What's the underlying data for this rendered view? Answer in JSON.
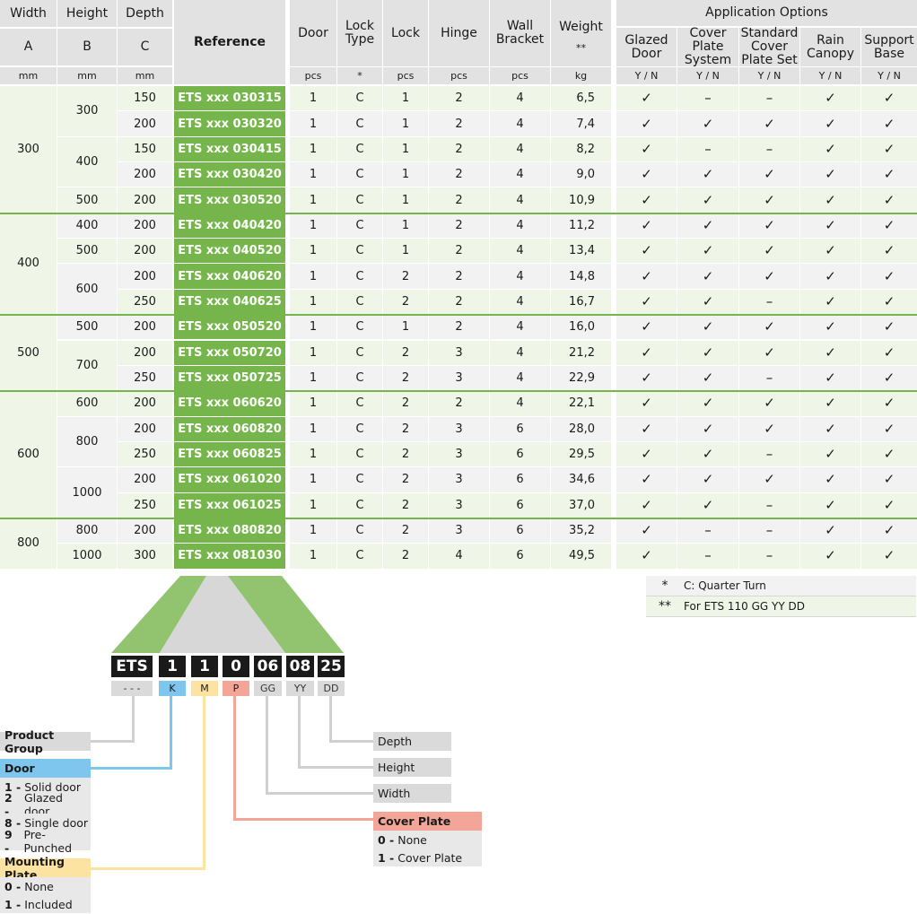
{
  "headers": {
    "width": {
      "name": "Width",
      "letter": "A",
      "unit": "mm"
    },
    "height": {
      "name": "Height",
      "letter": "B",
      "unit": "mm"
    },
    "depth": {
      "name": "Depth",
      "letter": "C",
      "unit": "mm"
    },
    "reference": "Reference",
    "door": {
      "name": "Door",
      "unit": "pcs"
    },
    "lock_type": {
      "name": "Lock\nType",
      "unit": "*"
    },
    "lock": {
      "name": "Lock",
      "unit": "pcs"
    },
    "hinge": {
      "name": "Hinge",
      "unit": "pcs"
    },
    "wall_bracket": {
      "name": "Wall\nBracket",
      "unit": "pcs"
    },
    "weight": {
      "name": "Weight",
      "note": "**",
      "unit": "kg"
    },
    "application_options": "Application Options",
    "options": [
      {
        "name": "Glazed\nDoor",
        "unit": "Y / N"
      },
      {
        "name": "Cover\nPlate\nSystem",
        "unit": "Y / N"
      },
      {
        "name": "Standard\nCover\nPlate Set",
        "unit": "Y / N"
      },
      {
        "name": "Rain\nCanopy",
        "unit": "Y / N"
      },
      {
        "name": "Support\nBase",
        "unit": "Y / N"
      }
    ]
  },
  "width_groups": [
    "300",
    "400",
    "500",
    "600",
    "800"
  ],
  "height_groups": [
    "300",
    "400",
    "500",
    "400",
    "500",
    "600",
    "500",
    "700",
    "600",
    "800",
    "1000",
    "800",
    "1000"
  ],
  "rows": [
    {
      "depth": "150",
      "ref": "ETS xxx 030315",
      "door": "1",
      "lock_type": "C",
      "lock": "1",
      "hinge": "2",
      "wall_bracket": "4",
      "weight": "6,5",
      "options": [
        "✓",
        "–",
        "–",
        "✓",
        "✓"
      ]
    },
    {
      "depth": "200",
      "ref": "ETS xxx 030320",
      "door": "1",
      "lock_type": "C",
      "lock": "1",
      "hinge": "2",
      "wall_bracket": "4",
      "weight": "7,4",
      "options": [
        "✓",
        "✓",
        "✓",
        "✓",
        "✓"
      ]
    },
    {
      "depth": "150",
      "ref": "ETS xxx 030415",
      "door": "1",
      "lock_type": "C",
      "lock": "1",
      "hinge": "2",
      "wall_bracket": "4",
      "weight": "8,2",
      "options": [
        "✓",
        "–",
        "–",
        "✓",
        "✓"
      ]
    },
    {
      "depth": "200",
      "ref": "ETS xxx 030420",
      "door": "1",
      "lock_type": "C",
      "lock": "1",
      "hinge": "2",
      "wall_bracket": "4",
      "weight": "9,0",
      "options": [
        "✓",
        "✓",
        "✓",
        "✓",
        "✓"
      ]
    },
    {
      "depth": "200",
      "ref": "ETS xxx 030520",
      "door": "1",
      "lock_type": "C",
      "lock": "1",
      "hinge": "2",
      "wall_bracket": "4",
      "weight": "10,9",
      "options": [
        "✓",
        "✓",
        "✓",
        "✓",
        "✓"
      ]
    },
    {
      "depth": "200",
      "ref": "ETS xxx 040420",
      "door": "1",
      "lock_type": "C",
      "lock": "1",
      "hinge": "2",
      "wall_bracket": "4",
      "weight": "11,2",
      "options": [
        "✓",
        "✓",
        "✓",
        "✓",
        "✓"
      ]
    },
    {
      "depth": "200",
      "ref": "ETS xxx 040520",
      "door": "1",
      "lock_type": "C",
      "lock": "1",
      "hinge": "2",
      "wall_bracket": "4",
      "weight": "13,4",
      "options": [
        "✓",
        "✓",
        "✓",
        "✓",
        "✓"
      ]
    },
    {
      "depth": "200",
      "ref": "ETS xxx 040620",
      "door": "1",
      "lock_type": "C",
      "lock": "2",
      "hinge": "2",
      "wall_bracket": "4",
      "weight": "14,8",
      "options": [
        "✓",
        "✓",
        "✓",
        "✓",
        "✓"
      ]
    },
    {
      "depth": "250",
      "ref": "ETS xxx 040625",
      "door": "1",
      "lock_type": "C",
      "lock": "2",
      "hinge": "2",
      "wall_bracket": "4",
      "weight": "16,7",
      "options": [
        "✓",
        "✓",
        "–",
        "✓",
        "✓"
      ]
    },
    {
      "depth": "200",
      "ref": "ETS xxx 050520",
      "door": "1",
      "lock_type": "C",
      "lock": "1",
      "hinge": "2",
      "wall_bracket": "4",
      "weight": "16,0",
      "options": [
        "✓",
        "✓",
        "✓",
        "✓",
        "✓"
      ]
    },
    {
      "depth": "200",
      "ref": "ETS xxx 050720",
      "door": "1",
      "lock_type": "C",
      "lock": "2",
      "hinge": "3",
      "wall_bracket": "4",
      "weight": "21,2",
      "options": [
        "✓",
        "✓",
        "✓",
        "✓",
        "✓"
      ]
    },
    {
      "depth": "250",
      "ref": "ETS xxx 050725",
      "door": "1",
      "lock_type": "C",
      "lock": "2",
      "hinge": "3",
      "wall_bracket": "4",
      "weight": "22,9",
      "options": [
        "✓",
        "✓",
        "–",
        "✓",
        "✓"
      ]
    },
    {
      "depth": "200",
      "ref": "ETS xxx 060620",
      "door": "1",
      "lock_type": "C",
      "lock": "2",
      "hinge": "2",
      "wall_bracket": "4",
      "weight": "22,1",
      "options": [
        "✓",
        "✓",
        "✓",
        "✓",
        "✓"
      ]
    },
    {
      "depth": "200",
      "ref": "ETS xxx 060820",
      "door": "1",
      "lock_type": "C",
      "lock": "2",
      "hinge": "3",
      "wall_bracket": "6",
      "weight": "28,0",
      "options": [
        "✓",
        "✓",
        "✓",
        "✓",
        "✓"
      ]
    },
    {
      "depth": "250",
      "ref": "ETS xxx 060825",
      "door": "1",
      "lock_type": "C",
      "lock": "2",
      "hinge": "3",
      "wall_bracket": "6",
      "weight": "29,5",
      "options": [
        "✓",
        "✓",
        "–",
        "✓",
        "✓"
      ]
    },
    {
      "depth": "200",
      "ref": "ETS xxx 061020",
      "door": "1",
      "lock_type": "C",
      "lock": "2",
      "hinge": "3",
      "wall_bracket": "6",
      "weight": "34,6",
      "options": [
        "✓",
        "✓",
        "✓",
        "✓",
        "✓"
      ]
    },
    {
      "depth": "250",
      "ref": "ETS xxx 061025",
      "door": "1",
      "lock_type": "C",
      "lock": "2",
      "hinge": "3",
      "wall_bracket": "6",
      "weight": "37,0",
      "options": [
        "✓",
        "✓",
        "–",
        "✓",
        "✓"
      ]
    },
    {
      "depth": "200",
      "ref": "ETS xxx 080820",
      "door": "1",
      "lock_type": "C",
      "lock": "2",
      "hinge": "3",
      "wall_bracket": "6",
      "weight": "35,2",
      "options": [
        "✓",
        "–",
        "–",
        "✓",
        "✓"
      ]
    },
    {
      "depth": "300",
      "ref": "ETS xxx 081030",
      "door": "1",
      "lock_type": "C",
      "lock": "2",
      "hinge": "4",
      "wall_bracket": "6",
      "weight": "49,5",
      "options": [
        "✓",
        "–",
        "–",
        "✓",
        "✓"
      ]
    }
  ],
  "footnotes": [
    {
      "symbol": "*",
      "text": "C: Quarter Turn"
    },
    {
      "symbol": "**",
      "text": "For ETS 110 GG YY DD"
    }
  ],
  "code": {
    "boxes": [
      "ETS",
      "1",
      "1",
      "0",
      "06",
      "08",
      "25"
    ],
    "tags": [
      "- - -",
      "K",
      "M",
      "P",
      "GG",
      "YY",
      "DD"
    ]
  },
  "legend": {
    "product_group": "Product Group",
    "door": {
      "title": "Door",
      "options": [
        {
          "n": "1 -",
          "t": "Solid door"
        },
        {
          "n": "2 -",
          "t": "Glazed door"
        },
        {
          "n": "8 -",
          "t": "Single door"
        },
        {
          "n": "9 -",
          "t": "Pre-Punched"
        }
      ]
    },
    "mounting_plate": {
      "title": "Mounting Plate",
      "options": [
        {
          "n": "0 -",
          "t": "None"
        },
        {
          "n": "1 -",
          "t": "Included"
        }
      ]
    },
    "depth": "Depth",
    "height": "Height",
    "width": "Width",
    "cover_plate": {
      "title": "Cover Plate",
      "options": [
        {
          "n": "0 -",
          "t": "None"
        },
        {
          "n": "1 -",
          "t": "Cover Plate"
        }
      ]
    }
  },
  "colors": {
    "green": "#76b54c",
    "header_grey": "#e2e2e2",
    "door_blue": "#7ec6ee",
    "mounting_yellow": "#fce3a1",
    "cover_red": "#f3a697"
  }
}
